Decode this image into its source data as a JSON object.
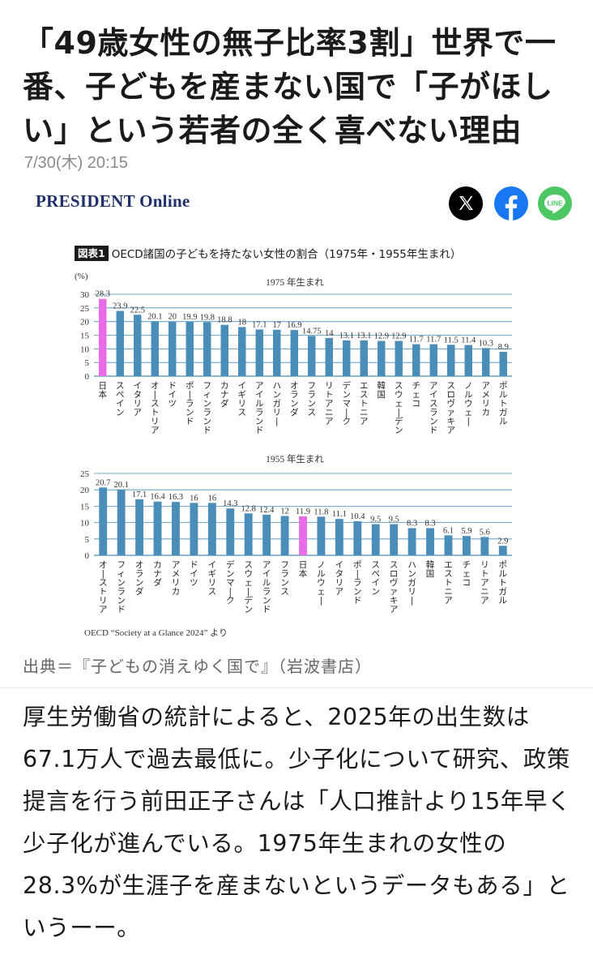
{
  "article": {
    "headline": "「49歳女性の無子比率3割」世界で一番、子どもを産まない国で「子がほしい」という若者の全く喜べない理由",
    "date": "7/30(木) 20:15",
    "brand": "PRESIDENT Online",
    "caption": "出典＝『子どもの消えゆく国で』（岩波書店）",
    "body": "厚生労働省の統計によると、2025年の出生数は67.1万人で過去最低に。少子化について研究、政策提言を行う前田正子さんは「人口推計より15年早く少子化が進んでいる。1975年生まれの女性の28.3%が生涯子を産まないというデータもある」というーー。"
  },
  "share": {
    "x_icon": "x-logo-icon",
    "facebook_icon": "facebook-icon",
    "line_icon": "line-icon",
    "line_text": "LINE"
  },
  "figure": {
    "tag": "図表1",
    "title": "OECD諸国の子どもを持たない女性の割合（1975年・1955年生まれ）",
    "source": "OECD “Society at a Glance 2024” より"
  },
  "colors": {
    "bar": "#4a8db8",
    "highlight": "#e86ce6",
    "grid": "#4a8db8",
    "x_bg": "#000000",
    "fb_bg": "#1877f2",
    "line_bg": "#4cc764"
  },
  "chart_data": [
    {
      "type": "bar",
      "title": "1975 年生まれ",
      "ylabel": "(%)",
      "ylim": [
        0,
        30
      ],
      "yticks": [
        0,
        5,
        10,
        15,
        20,
        25,
        30
      ],
      "grid": true,
      "highlight": "日本",
      "categories": [
        "日本",
        "スペイン",
        "イタリア",
        "オーストリア",
        "ドイツ",
        "ポーランド",
        "フィンランド",
        "カナダ",
        "イギリス",
        "アイルランド",
        "ハンガリー",
        "オランダ",
        "フランス",
        "リトアニア",
        "デンマーク",
        "エストニア",
        "韓国",
        "スウェーデン",
        "チェコ",
        "アイスランド",
        "スロヴァキア",
        "ノルウェー",
        "アメリカ",
        "ポルトガル"
      ],
      "values": [
        28.3,
        23.9,
        22.5,
        20.1,
        20,
        19.9,
        19.8,
        18.8,
        18,
        17.1,
        17,
        16.9,
        14.75,
        14,
        13.1,
        13.1,
        12.9,
        12.9,
        11.7,
        11.7,
        11.5,
        11.4,
        10.3,
        8.9
      ],
      "labels": [
        "28.3",
        "23.9",
        "22.5",
        "20.1",
        "20",
        "19.9",
        "19.8",
        "18.8",
        "18",
        "17.1",
        "17",
        "16.9",
        "14.75",
        "14",
        "13.1",
        "13.1",
        "12.9",
        "12.9",
        "11.7",
        "11.7",
        "11.5",
        "11.4",
        "10.3",
        "8.9"
      ]
    },
    {
      "type": "bar",
      "title": "1955 年生まれ",
      "ylabel": "",
      "ylim": [
        0,
        25
      ],
      "yticks": [
        0,
        5,
        10,
        15,
        20,
        25
      ],
      "grid": true,
      "highlight": "日本",
      "categories": [
        "オーストリア",
        "フィンランド",
        "オランダ",
        "カナダ",
        "アメリカ",
        "ドイツ",
        "イギリス",
        "デンマーク",
        "スウェーデン",
        "アイルランド",
        "フランス",
        "日本",
        "ノルウェー",
        "イタリア",
        "ポーランド",
        "スペイン",
        "スロヴァキア",
        "ハンガリー",
        "韓国",
        "エストニア",
        "チェコ",
        "リトアニア",
        "ポルトガル"
      ],
      "values": [
        20.7,
        20.1,
        17.1,
        16.4,
        16.3,
        16,
        16,
        14.3,
        12.8,
        12.4,
        12,
        11.9,
        11.8,
        11.1,
        10.4,
        9.5,
        9.5,
        8.3,
        8.3,
        6.1,
        5.9,
        5.6,
        2.9
      ],
      "labels": [
        "20.7",
        "20.1",
        "17.1",
        "16.4",
        "16.3",
        "16",
        "16",
        "14.3",
        "12.8",
        "12.4",
        "12",
        "11.9",
        "11.8",
        "11.1",
        "10.4",
        "9.5",
        "9.5",
        "8.3",
        "8.3",
        "6.1",
        "5.9",
        "5.6",
        "2.9"
      ]
    }
  ]
}
